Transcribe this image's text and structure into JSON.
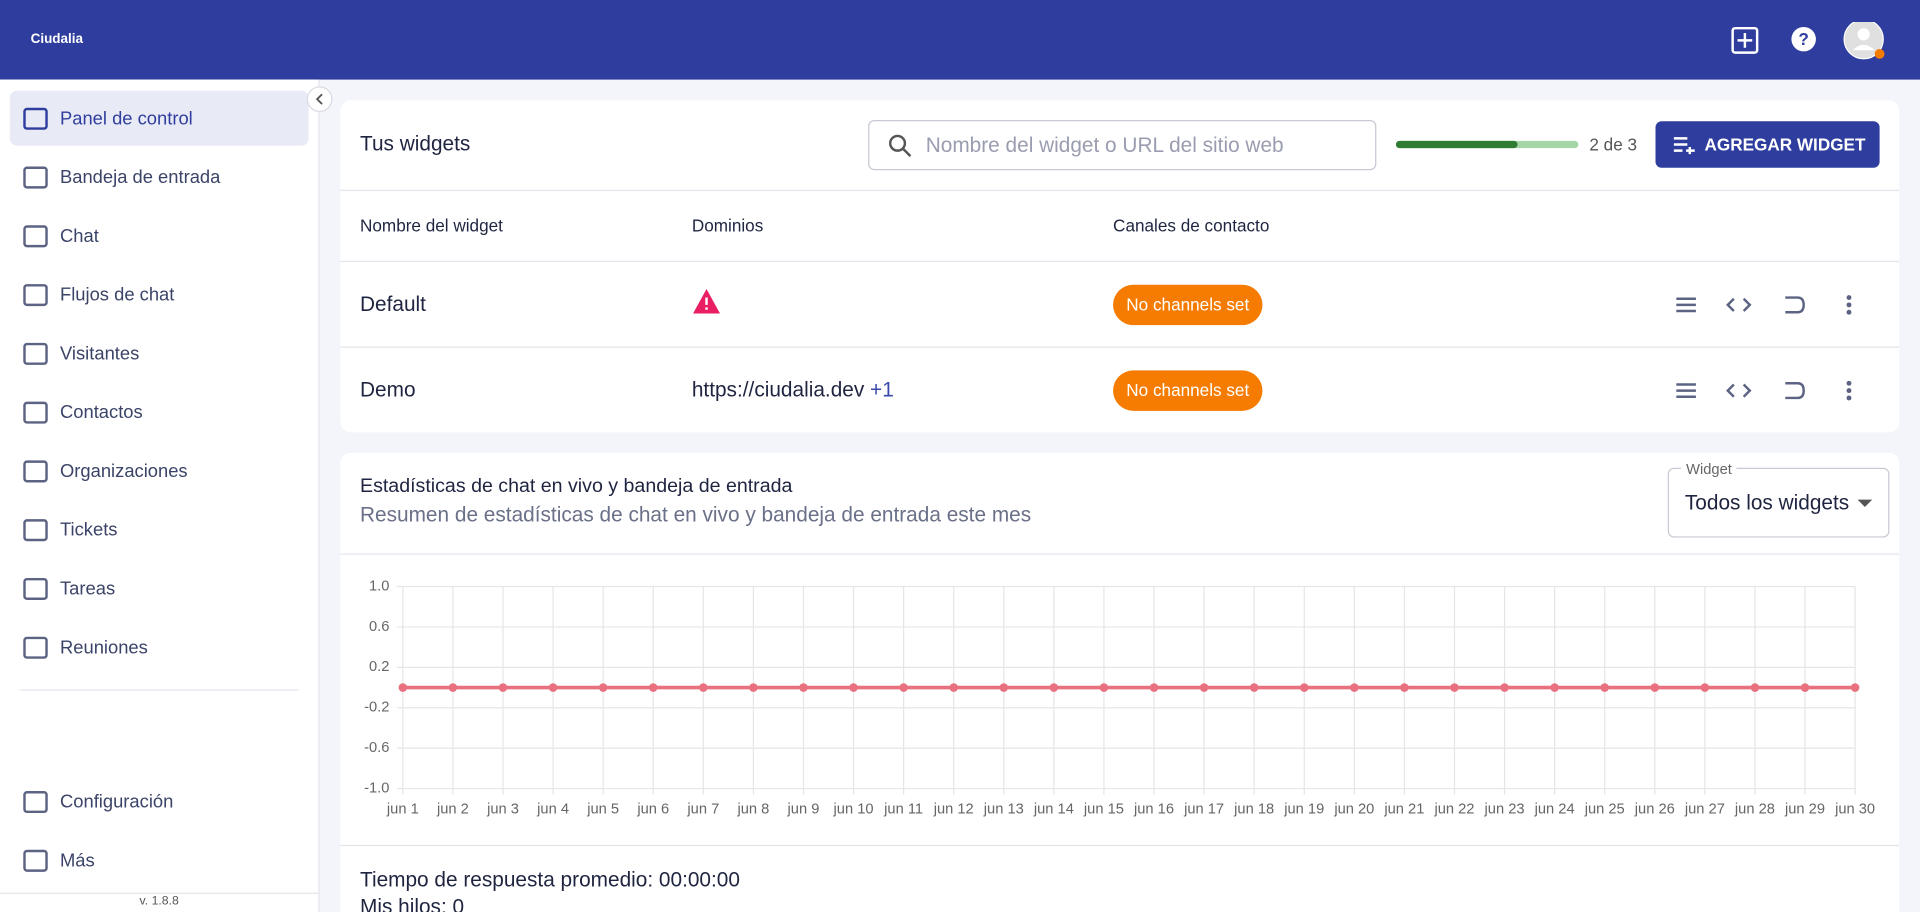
{
  "logo": "Ciudalia",
  "sidebar": {
    "nav": [
      "Panel de control",
      "Bandeja de entrada",
      "Chat",
      "Flujos de chat",
      "Visitantes",
      "Contactos",
      "Organizaciones",
      "Tickets",
      "Tareas",
      "Reuniones"
    ],
    "bottom": [
      "Configuración",
      "Más"
    ],
    "version": "v. 1.8.8"
  },
  "widgets": {
    "title": "Tus widgets",
    "search_placeholder": "Nombre del widget o URL del sitio web",
    "usage_label": "2 de 3",
    "used": 2,
    "limit": 3,
    "add_button": "AGREGAR WIDGET",
    "columns": [
      "Nombre del widget",
      "Dominios",
      "Canales de contacto"
    ],
    "rows": [
      {
        "name": "Default",
        "channels": "No channels set"
      },
      {
        "name": "Demo",
        "domain": "https://ciudalia.dev",
        "domain_extra": "+1",
        "channels": "No channels set"
      }
    ]
  },
  "stats": {
    "title": "Estadísticas de chat en vivo y bandeja de entrada",
    "subtitle": "Resumen de estadísticas de chat en vivo y bandeja de entrada este mes",
    "select_label": "Widget",
    "select_value": "Todos los widgets",
    "metrics": [
      "Tiempo de respuesta promedio: 00:00:00",
      "Mis hilos: 0"
    ]
  },
  "chart_data": {
    "type": "line",
    "categories": [
      "jun 1",
      "jun 2",
      "jun 3",
      "jun 4",
      "jun 5",
      "jun 6",
      "jun 7",
      "jun 8",
      "jun 9",
      "jun 10",
      "jun 11",
      "jun 12",
      "jun 13",
      "jun 14",
      "jun 15",
      "jun 16",
      "jun 17",
      "jun 18",
      "jun 19",
      "jun 20",
      "jun 21",
      "jun 22",
      "jun 23",
      "jun 24",
      "jun 25",
      "jun 26",
      "jun 27",
      "jun 28",
      "jun 29",
      "jun 30"
    ],
    "values": [
      0,
      0,
      0,
      0,
      0,
      0,
      0,
      0,
      0,
      0,
      0,
      0,
      0,
      0,
      0,
      0,
      0,
      0,
      0,
      0,
      0,
      0,
      0,
      0,
      0,
      0,
      0,
      0,
      0,
      0
    ],
    "color": "#e8707f",
    "ylim": [
      -1,
      1
    ],
    "yticks": [
      {
        "value": 1,
        "label": "1.0"
      },
      0.6,
      0.2,
      -0.2,
      -0.6,
      {
        "value": -1,
        "label": "-1.0"
      }
    ],
    "grid": true
  }
}
